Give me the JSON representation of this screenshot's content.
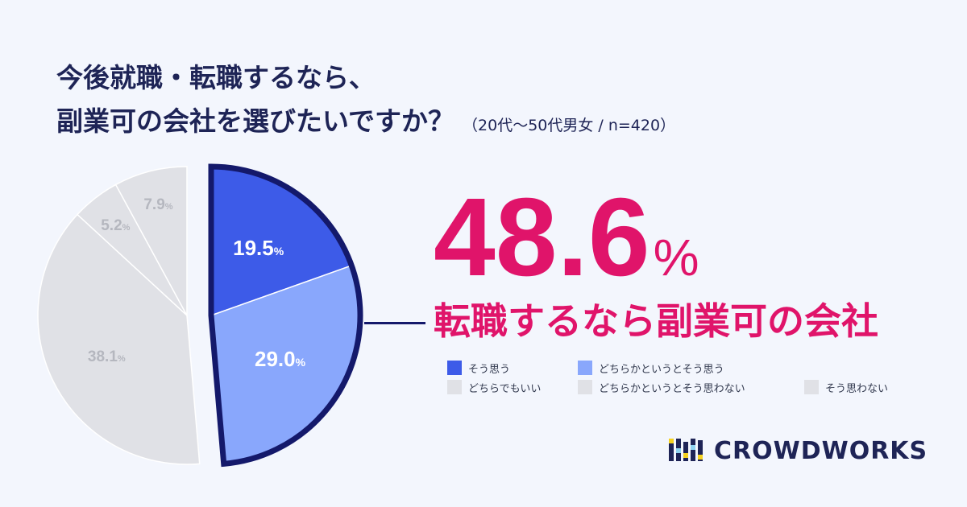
{
  "title": {
    "line1": "今後就職・転職するなら、",
    "line2": "副業可の会社を選びたいですか？",
    "subtitle": "（20代〜50代男女 / n=420）"
  },
  "highlight": {
    "value": "48.6",
    "unit": "%",
    "label": "転職するなら副業可の会社"
  },
  "brand": {
    "name": "CROWDWORKS"
  },
  "colors": {
    "agree": "#3d5be8",
    "somewhat_agree": "#89a7fc",
    "others": "#e0e1e6",
    "outline": "#14196b",
    "accent": "#e0146a"
  },
  "chart_data": {
    "type": "pie",
    "title": "今後就職・転職するなら、副業可の会社を選びたいですか？",
    "slices": [
      {
        "label": "そう思う",
        "value": 19.5,
        "display": "19.5",
        "color": "#3d5be8",
        "highlighted": true
      },
      {
        "label": "どちらかというとそう思う",
        "value": 29.0,
        "display": "29.0",
        "color": "#89a7fc",
        "highlighted": true
      },
      {
        "label": "どちらでもいい",
        "value": 38.1,
        "display": "38.1",
        "color": "#e0e1e6",
        "highlighted": false
      },
      {
        "label": "どちらかというとそう思わない",
        "value": 5.2,
        "display": "5.2",
        "color": "#e0e1e6",
        "highlighted": false
      },
      {
        "label": "そう思わない",
        "value": 7.9,
        "display": "7.9",
        "color": "#e0e1e6",
        "highlighted": false
      }
    ],
    "unit": "%",
    "legend": "right"
  }
}
